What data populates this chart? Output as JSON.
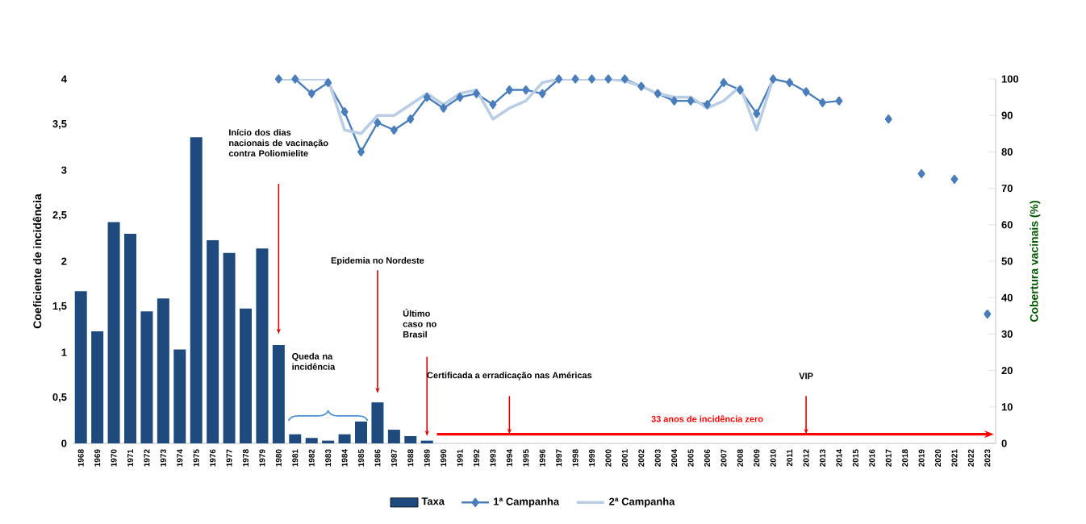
{
  "chart_data": {
    "type": "bar",
    "ylabel": "Coeficiente de incidência",
    "y2label": "Cobertura vacinais (%)",
    "categories": [
      "1968",
      "1969",
      "1970",
      "1971",
      "1972",
      "1973",
      "1974",
      "1975",
      "1976",
      "1977",
      "1978",
      "1979",
      "1980",
      "1981",
      "1982",
      "1983",
      "1984",
      "1985",
      "1986",
      "1987",
      "1988",
      "1989",
      "1990",
      "1991",
      "1992",
      "1993",
      "1994",
      "1995",
      "1996",
      "1997",
      "1998",
      "1999",
      "2000",
      "2001",
      "2002",
      "2003",
      "2004",
      "2005",
      "2006",
      "2007",
      "2008",
      "2009",
      "2010",
      "2011",
      "2012",
      "2013",
      "2014",
      "2015",
      "2016",
      "2017",
      "2018",
      "2019",
      "2020",
      "2021",
      "2022",
      "2023"
    ],
    "series": [
      {
        "name": "Taxa",
        "color": "#1f4a7e",
        "values": [
          1.67,
          1.23,
          2.43,
          2.3,
          1.45,
          1.59,
          1.03,
          3.36,
          2.23,
          2.09,
          1.48,
          2.14,
          1.08,
          0.1,
          0.06,
          0.03,
          0.1,
          0.24,
          0.45,
          0.15,
          0.08,
          0.03,
          null,
          null,
          null,
          null,
          null,
          null,
          null,
          null,
          null,
          null,
          null,
          null,
          null,
          null,
          null,
          null,
          null,
          null,
          null,
          null,
          null,
          null,
          null,
          null,
          null,
          null,
          null,
          null,
          null,
          null,
          null,
          null,
          null,
          null
        ]
      },
      {
        "name": "1ª Campanha",
        "type": "line",
        "axis": "y2",
        "marker": "diamond",
        "color": "#4a7ebb",
        "values": [
          null,
          null,
          null,
          null,
          null,
          null,
          null,
          null,
          null,
          null,
          null,
          null,
          100,
          100,
          96,
          99,
          91,
          80,
          88,
          86,
          89,
          95,
          92,
          95,
          96,
          93,
          97,
          97,
          96,
          100,
          100,
          100,
          100,
          100,
          98,
          96,
          94,
          94,
          93,
          99,
          97,
          90.5,
          100,
          99,
          96.5,
          93.5,
          94,
          null,
          null,
          89,
          null,
          74,
          null,
          72.5,
          null,
          35.5
        ]
      },
      {
        "name": "2ª Campanha",
        "type": "line",
        "axis": "y2",
        "marker": "none",
        "color": "#b9cde5",
        "values": [
          null,
          null,
          null,
          null,
          null,
          null,
          null,
          null,
          null,
          null,
          null,
          null,
          100,
          100,
          100,
          100,
          86,
          85,
          90,
          90,
          93,
          96,
          93,
          96,
          97,
          89,
          92,
          94,
          99,
          100,
          100,
          100,
          100,
          99.5,
          98,
          96,
          95,
          95,
          92,
          94,
          98,
          86,
          100,
          null,
          null,
          null,
          null,
          null,
          null,
          null,
          null,
          null,
          null,
          null,
          null,
          null
        ]
      }
    ],
    "ylim": [
      0,
      4
    ],
    "yticks": [
      0,
      {
        "value": 0.5,
        "label": "0,5"
      },
      1,
      {
        "value": 1.5,
        "label": "1,5"
      },
      2,
      {
        "value": 2.5,
        "label": "2,5"
      },
      3,
      {
        "value": 3.5,
        "label": "3,5"
      },
      4
    ],
    "y2lim": [
      0,
      100
    ],
    "y2ticks": [
      0,
      10,
      20,
      30,
      40,
      50,
      60,
      70,
      80,
      90,
      100
    ],
    "annotations": [
      "Início dos dias nacionais de vacinação contra Poliomielite",
      "Queda na incidência",
      {
        "text": "Epidemia no Nordeste",
        "x": "1986",
        "y": 0.55
      },
      "Último caso no Brasil",
      "Certificada a erradicação nas Américas",
      "VIP",
      "33 anos de incidência zero"
    ],
    "grid": false,
    "legend": "bottom"
  }
}
